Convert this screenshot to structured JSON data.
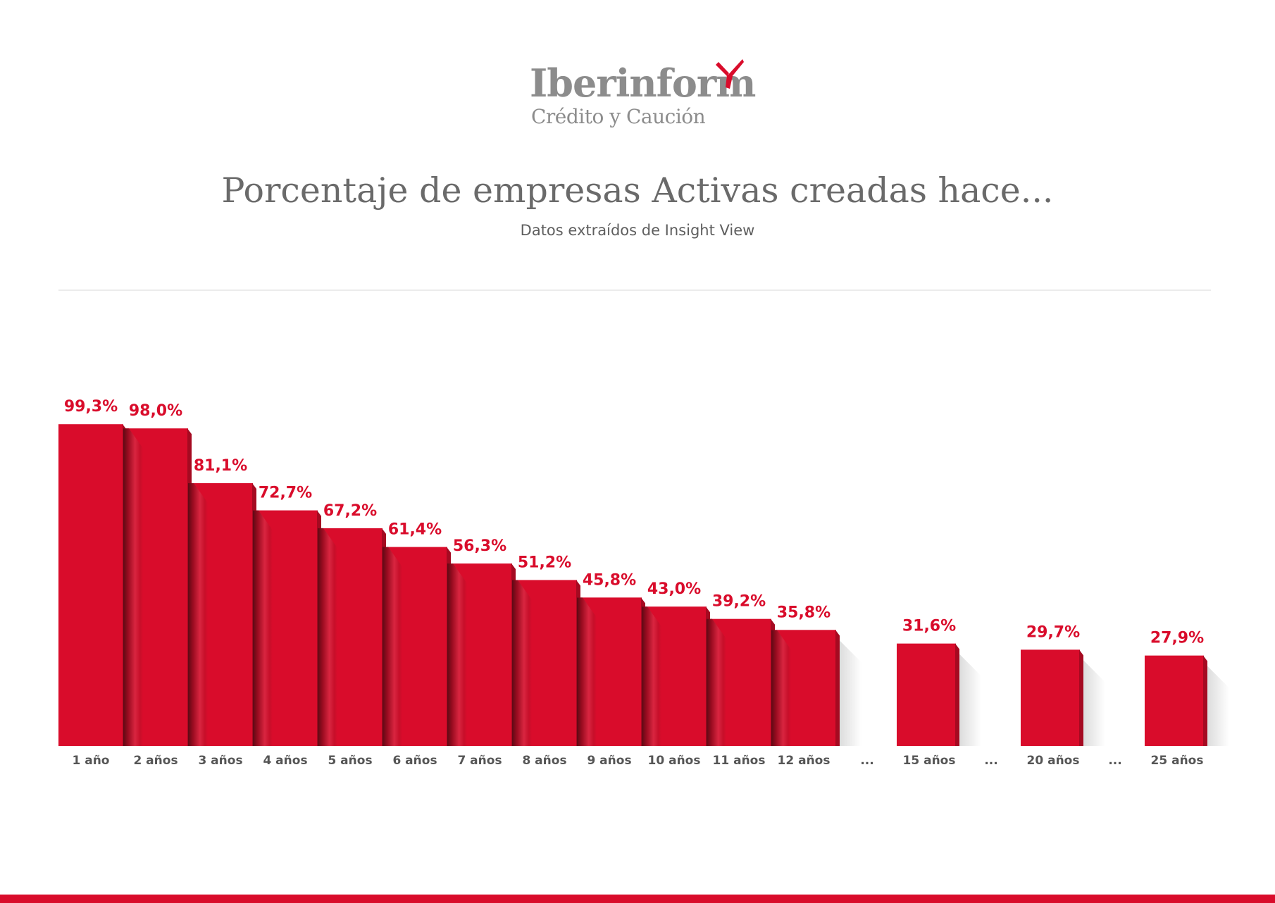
{
  "logo": {
    "name": "Iberinform",
    "tagline": "Crédito y Caución",
    "mark_icon": "propeller-icon"
  },
  "header": {
    "title": "Porcentaje de empresas Activas creadas hace...",
    "subtitle": "Datos extraídos de Insight View"
  },
  "colors": {
    "accent": "#d90c2b",
    "text": "#6a6a6a",
    "label": "#555555"
  },
  "chart_data": {
    "type": "bar",
    "title": "Porcentaje de empresas Activas creadas hace...",
    "subtitle": "Datos extraídos de Insight View",
    "ylim": [
      0,
      100
    ],
    "grid": false,
    "legend": "none",
    "items": [
      {
        "label": "1 año",
        "value": 99.3,
        "value_label": "99,3%"
      },
      {
        "label": "2 años",
        "value": 98.0,
        "value_label": "98,0%"
      },
      {
        "label": "3 años",
        "value": 81.1,
        "value_label": "81,1%"
      },
      {
        "label": "4 años",
        "value": 72.7,
        "value_label": "72,7%"
      },
      {
        "label": "5 años",
        "value": 67.2,
        "value_label": "67,2%"
      },
      {
        "label": "6 años",
        "value": 61.4,
        "value_label": "61,4%"
      },
      {
        "label": "7 años",
        "value": 56.3,
        "value_label": "56,3%"
      },
      {
        "label": "8 años",
        "value": 51.2,
        "value_label": "51,2%"
      },
      {
        "label": "9 años",
        "value": 45.8,
        "value_label": "45,8%"
      },
      {
        "label": "10 años",
        "value": 43.0,
        "value_label": "43,0%"
      },
      {
        "label": "11 años",
        "value": 39.2,
        "value_label": "39,2%"
      },
      {
        "label": "12 años",
        "value": 35.8,
        "value_label": "35,8%"
      },
      {
        "label": "...",
        "value": null,
        "value_label": ""
      },
      {
        "label": "15 años",
        "value": 31.6,
        "value_label": "31,6%"
      },
      {
        "label": "...",
        "value": null,
        "value_label": ""
      },
      {
        "label": "20 años",
        "value": 29.7,
        "value_label": "29,7%"
      },
      {
        "label": "...",
        "value": null,
        "value_label": ""
      },
      {
        "label": "25 años",
        "value": 27.9,
        "value_label": "27,9%"
      }
    ]
  }
}
